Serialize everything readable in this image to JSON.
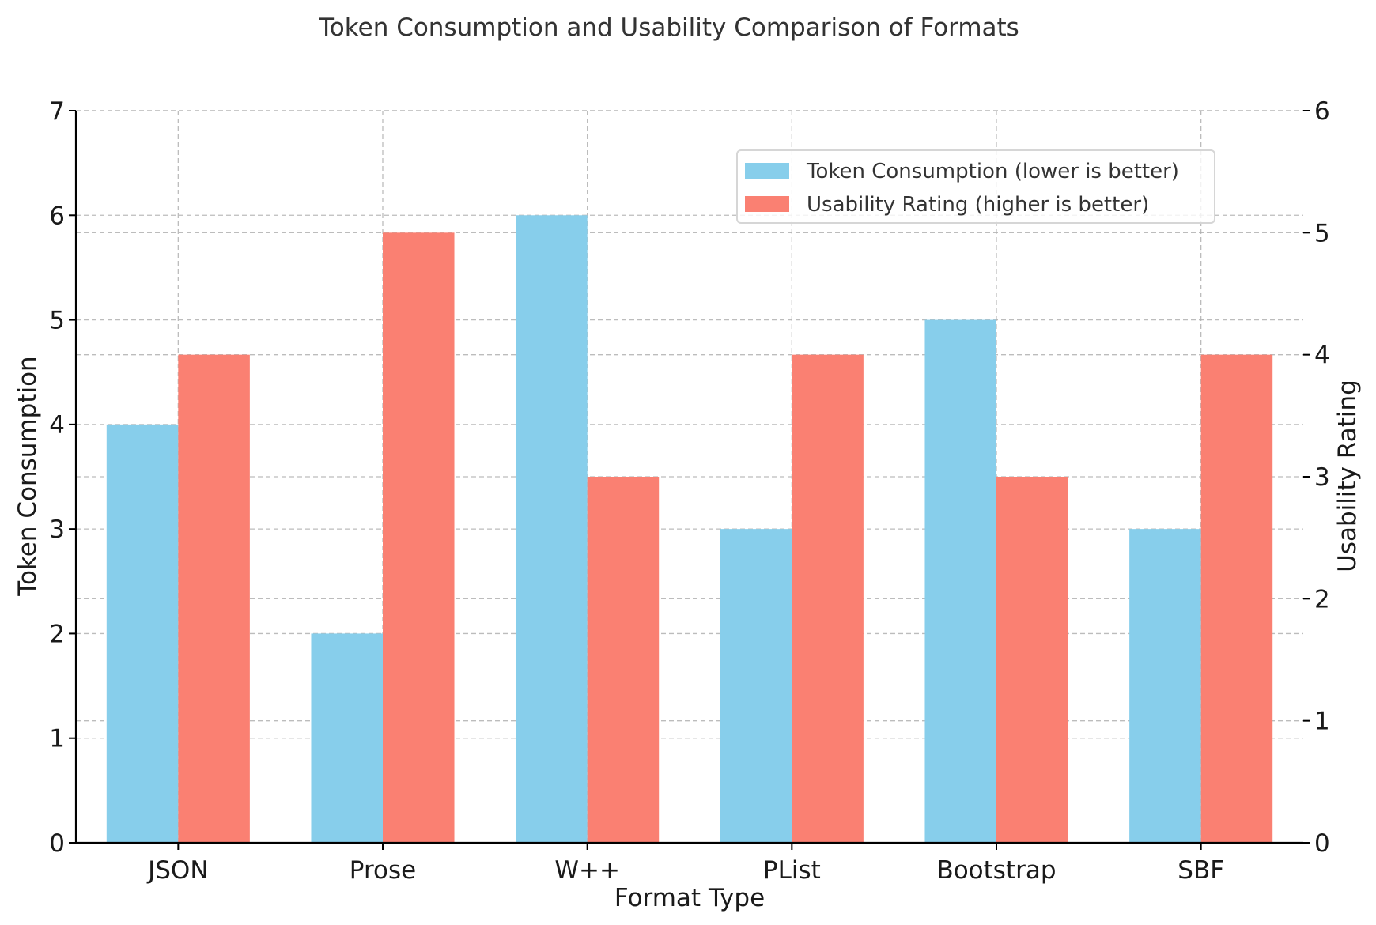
{
  "chart_data": {
    "type": "bar",
    "title": "Token Consumption and Usability Comparison of Formats",
    "xlabel": "Format Type",
    "ylabel": "Token Consumption",
    "y2label": "Usability Rating",
    "categories": [
      "JSON",
      "Prose",
      "W++",
      "PList",
      "Bootstrap",
      "SBF"
    ],
    "series": [
      {
        "name": "Token Consumption (lower is better)",
        "axis": "left",
        "color": "#87CEEB",
        "values": [
          4,
          2,
          6,
          3,
          5,
          3
        ]
      },
      {
        "name": "Usability Rating (higher is better)",
        "axis": "right",
        "color": "#FA8072",
        "values": [
          4,
          5,
          3,
          4,
          3,
          4
        ]
      }
    ],
    "ylim": [
      0,
      7
    ],
    "y2lim": [
      0,
      6
    ],
    "yticks": [
      0,
      1,
      2,
      3,
      4,
      5,
      6,
      7
    ],
    "y2ticks": [
      0,
      1,
      2,
      3,
      4,
      5,
      6
    ],
    "grid": true,
    "legend_position": "top-right"
  }
}
